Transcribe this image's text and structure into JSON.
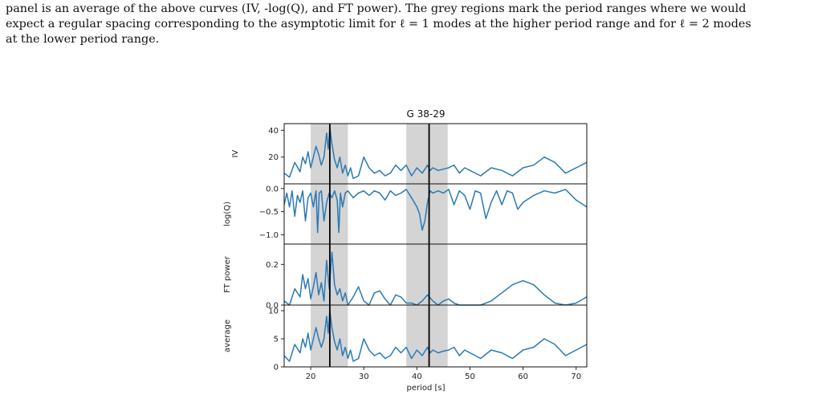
{
  "caption": {
    "lines": [
      "panel is an average of the above curves (IV, -log(Q), and FT power). The grey regions mark the period ranges where we would",
      "expect a regular spacing corresponding to the asymptotic limit for ℓ = 1 modes at the higher period range and for ℓ = 2 modes",
      "at the lower period range."
    ]
  },
  "chart_data": {
    "type": "line",
    "title": "G 38-29",
    "xlabel": "period [s]",
    "xlim": [
      15,
      72
    ],
    "xticks": [
      20,
      30,
      40,
      50,
      60,
      70
    ],
    "line_color": "#2a7ab5",
    "shade_color": "#d4d4d4",
    "grey_regions": [
      [
        20.0,
        27.0
      ],
      [
        38.0,
        45.8
      ]
    ],
    "vertical_lines": [
      23.6,
      42.3
    ],
    "panels": [
      {
        "ylabel": "IV",
        "ylim": [
          0,
          45
        ],
        "yticks": [
          20,
          40
        ],
        "ytick_labels": [
          "20",
          "40"
        ],
        "x": [
          15,
          16,
          17,
          18,
          18.5,
          19,
          19.5,
          20,
          20.5,
          21,
          21.5,
          22,
          22.5,
          23,
          23.3,
          23.6,
          24,
          24.5,
          25,
          25.5,
          26,
          26.5,
          27,
          27.5,
          28,
          29,
          30,
          31,
          32,
          33,
          34,
          35,
          36,
          37,
          38,
          39,
          40,
          41,
          42,
          42.5,
          43,
          44,
          45,
          46,
          47,
          48,
          49,
          50,
          52,
          54,
          56,
          58,
          60,
          62,
          64,
          66,
          68,
          70,
          72
        ],
        "values": [
          8,
          5,
          16,
          9,
          20,
          15,
          24,
          12,
          20,
          28,
          22,
          14,
          20,
          38,
          26,
          42,
          30,
          18,
          12,
          20,
          8,
          14,
          6,
          12,
          4,
          6,
          20,
          12,
          8,
          10,
          6,
          8,
          14,
          10,
          14,
          6,
          12,
          8,
          14,
          10,
          12,
          10,
          11,
          12,
          14,
          8,
          12,
          10,
          6,
          12,
          10,
          6,
          12,
          14,
          20,
          16,
          8,
          12,
          16
        ]
      },
      {
        "ylabel": "log(Q)",
        "ylim": [
          -1.2,
          0.1
        ],
        "yticks": [
          -1.0,
          -0.5,
          0.0
        ],
        "ytick_labels": [
          "−1.0",
          "−0.5",
          "0.0"
        ],
        "x": [
          15,
          15.5,
          16,
          16.5,
          17,
          17.5,
          18,
          18.5,
          19,
          19.5,
          20,
          20.5,
          21,
          21.3,
          21.6,
          22,
          22.5,
          23,
          23.5,
          24,
          24.5,
          25,
          25.3,
          25.6,
          26,
          26.5,
          27,
          28,
          29,
          30,
          31,
          32,
          33,
          34,
          35,
          36,
          37,
          38,
          39,
          40,
          40.5,
          41,
          41.5,
          42,
          42.5,
          43,
          44,
          45,
          46,
          47,
          48,
          49,
          50,
          51,
          52,
          53,
          54,
          55,
          56,
          57,
          58,
          59,
          60,
          62,
          64,
          66,
          68,
          70,
          72
        ],
        "values": [
          -0.35,
          -0.1,
          -0.4,
          -0.05,
          -0.6,
          -0.15,
          -0.3,
          -0.05,
          -0.7,
          -0.2,
          -0.1,
          -0.4,
          -0.05,
          -0.95,
          -0.1,
          -0.05,
          -0.7,
          -0.3,
          -0.1,
          -0.2,
          -0.05,
          -0.25,
          -0.95,
          -0.1,
          -0.4,
          -0.1,
          -0.05,
          -0.2,
          -0.1,
          -0.05,
          -0.15,
          -0.05,
          -0.1,
          -0.25,
          -0.05,
          -0.15,
          -0.1,
          -0.02,
          -0.2,
          -0.4,
          -0.55,
          -0.9,
          -0.7,
          -0.3,
          -0.05,
          -0.1,
          -0.05,
          -0.1,
          -0.02,
          -0.35,
          -0.05,
          -0.15,
          -0.45,
          -0.05,
          -0.1,
          -0.65,
          -0.3,
          -0.05,
          -0.35,
          -0.05,
          -0.1,
          -0.45,
          -0.3,
          -0.15,
          -0.05,
          -0.1,
          -0.02,
          -0.25,
          -0.4
        ]
      },
      {
        "ylabel": "FT power",
        "ylim": [
          0,
          0.3
        ],
        "yticks": [
          0.0,
          0.2
        ],
        "ytick_labels": [
          "0.0",
          "0.2"
        ],
        "x": [
          15,
          16,
          17,
          18,
          18.5,
          19,
          19.5,
          20,
          20.5,
          21,
          21.5,
          22,
          22.5,
          23,
          23.5,
          24,
          24.5,
          25,
          25.5,
          26,
          26.5,
          27,
          28,
          29,
          30,
          31,
          32,
          33,
          34,
          35,
          36,
          37,
          38,
          39,
          40,
          41,
          42,
          43,
          44,
          45,
          46,
          47,
          48,
          50,
          52,
          54,
          56,
          58,
          60,
          62,
          64,
          66,
          68,
          70,
          72
        ],
        "values": [
          0.02,
          0.0,
          0.08,
          0.04,
          0.15,
          0.08,
          0.13,
          0.03,
          0.09,
          0.16,
          0.05,
          0.11,
          0.02,
          0.22,
          0.08,
          0.26,
          0.1,
          0.05,
          0.08,
          0.02,
          0.06,
          0.0,
          0.04,
          0.09,
          0.02,
          0.0,
          0.06,
          0.07,
          0.03,
          0.0,
          0.05,
          0.04,
          0.01,
          0.01,
          0.0,
          0.02,
          0.05,
          0.02,
          0.0,
          0.02,
          0.03,
          0.01,
          0.0,
          0.0,
          0.0,
          0.02,
          0.06,
          0.1,
          0.12,
          0.1,
          0.05,
          0.01,
          0.0,
          0.01,
          0.04
        ]
      },
      {
        "ylabel": "average",
        "ylim": [
          0,
          11
        ],
        "yticks": [
          0,
          5,
          10
        ],
        "ytick_labels": [
          "0",
          "5",
          "10"
        ],
        "x": [
          15,
          16,
          17,
          18,
          18.5,
          19,
          19.5,
          20,
          20.5,
          21,
          21.5,
          22,
          22.5,
          23,
          23.3,
          23.6,
          24,
          24.5,
          25,
          25.5,
          26,
          26.5,
          27,
          27.5,
          28,
          29,
          30,
          31,
          32,
          33,
          34,
          35,
          36,
          37,
          38,
          39,
          40,
          41,
          42,
          42.5,
          43,
          44,
          45,
          46,
          47,
          48,
          49,
          50,
          52,
          54,
          56,
          58,
          60,
          62,
          64,
          66,
          68,
          70,
          72
        ],
        "values": [
          2,
          1,
          4,
          2.5,
          5,
          3.5,
          6,
          3,
          5,
          7,
          5,
          3.5,
          5,
          9,
          6,
          10,
          7,
          4.5,
          3,
          5,
          2,
          3.5,
          1.5,
          3,
          1,
          1.5,
          5,
          3,
          2,
          2.5,
          1.5,
          2,
          3.5,
          2.5,
          3.5,
          1.5,
          3,
          2,
          3.5,
          2.5,
          3,
          2.5,
          2.8,
          3,
          3.5,
          2,
          3,
          2.5,
          1.5,
          3,
          2.5,
          1.5,
          3,
          3.5,
          5,
          4,
          2,
          3,
          4
        ]
      }
    ]
  }
}
